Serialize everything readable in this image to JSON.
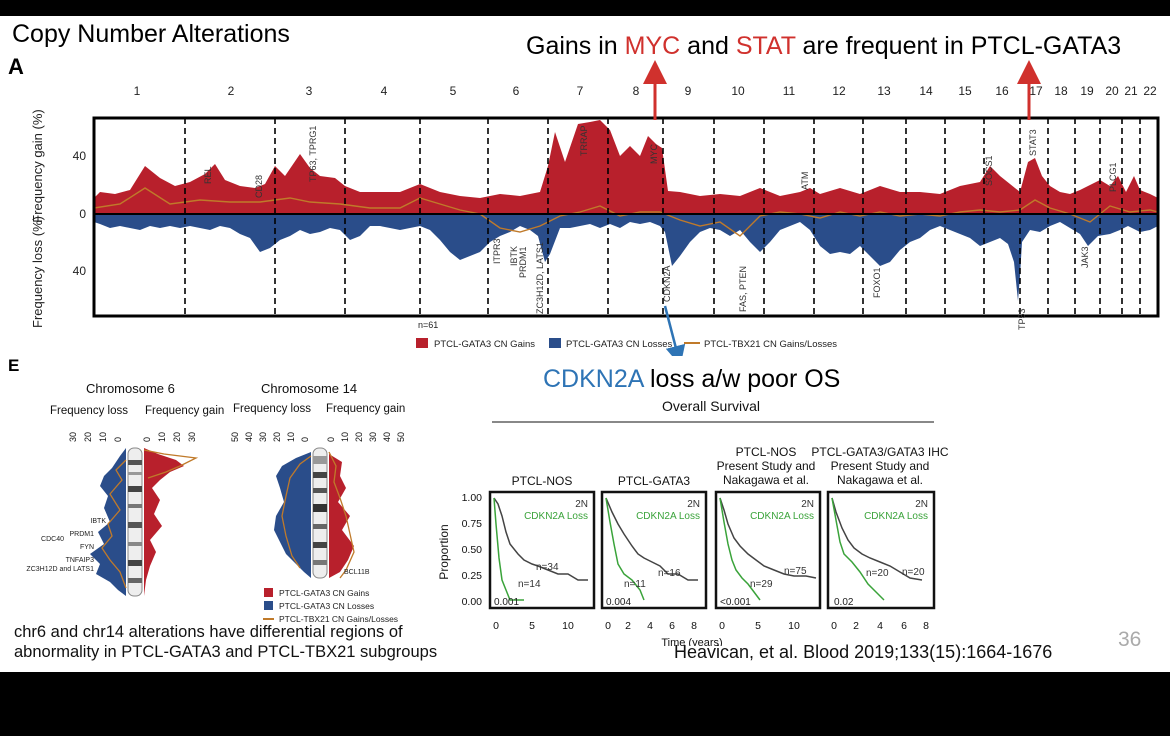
{
  "slide": {
    "title": "Copy Number Alterations",
    "panel_a_label": "A",
    "panel_e_label": "E",
    "headline_parts": [
      "Gains in ",
      "MYC",
      " and ",
      "STAT",
      " are frequent in PTCL-GATA3"
    ],
    "cdkn_callout_parts": [
      "CDKN2A",
      " loss a/w poor OS"
    ],
    "caption": "chr6 and chr14 alterations have differential regions of abnormality in PTCL-GATA3 and PTCL-TBX21 subgroups",
    "citation": "Heavican, et al. Blood 2019;133(15):1664-1676",
    "slide_number": "36",
    "colors": {
      "gain": "#b8202c",
      "loss": "#2a4d8a",
      "tbx21": "#c07a2a",
      "accent_red": "#d0312d",
      "accent_blue": "#2e74b5"
    }
  },
  "panel_a": {
    "chromosomes": [
      "1",
      "2",
      "3",
      "4",
      "5",
      "6",
      "7",
      "8",
      "9",
      "10",
      "11",
      "12",
      "13",
      "14",
      "15",
      "16",
      "17",
      "18",
      "19",
      "20",
      "21",
      "22"
    ],
    "y_gain_label": "Frequency gain (%)",
    "y_loss_label": "Frequency loss (%)",
    "ticks": [
      "40",
      "0",
      "40"
    ],
    "gene_labels": [
      "REL",
      "CD28",
      "TP63, TPRG1",
      "TRRAP",
      "MYC",
      "ATM",
      "SOCS1",
      "STAT3",
      "PLCG1",
      "ITPR3",
      "IBTK",
      "PRDM1",
      "ZC3H12D, LATS1",
      "CDKN2A",
      "FAS, PTEN",
      "FOXO1",
      "TP53",
      "JAK3"
    ],
    "n_label": "n=61",
    "legend": [
      "PTCL-GATA3 CN Gains",
      "PTCL-GATA3 CN Losses",
      "PTCL-TBX21 CN Gains/Losses"
    ]
  },
  "panel_e": {
    "chr6_title": "Chromosome 6",
    "chr14_title": "Chromosome 14",
    "freq_loss": "Frequency loss",
    "freq_gain": "Frequency gain",
    "chr6_loss_ticks": [
      "30",
      "20",
      "10",
      "0"
    ],
    "chr6_gain_ticks": [
      "0",
      "10",
      "20",
      "30"
    ],
    "chr14_loss_ticks": [
      "50",
      "40",
      "30",
      "20",
      "10",
      "0"
    ],
    "chr14_gain_ticks": [
      "0",
      "10",
      "20",
      "30",
      "40",
      "50"
    ],
    "chr6_genes": [
      "IBTK",
      "PRDM1",
      "CDC40",
      "FYN",
      "TNFAIP3",
      "ZC3H12D and LATS1"
    ],
    "chr14_genes": [
      "BCL11B"
    ],
    "legend": [
      "PTCL-GATA3 CN Gains",
      "PTCL-GATA3 CN Losses",
      "PTCL-TBX21 CN Gains/Losses"
    ]
  },
  "survival": {
    "title": "Overall Survival",
    "y_label": "Proportion",
    "x_label": "Time (years)",
    "y_ticks": [
      "1.00",
      "0.75",
      "0.50",
      "0.25",
      "0.00"
    ],
    "legend_2n": "2N",
    "legend_loss": "CDKN2A Loss",
    "panels": [
      {
        "title": [
          "PTCL-NOS"
        ],
        "n_2n": "n=34",
        "n_loss": "n=14",
        "p": "0.001",
        "x_ticks": [
          "0",
          "5",
          "10"
        ]
      },
      {
        "title": [
          "PTCL-GATA3"
        ],
        "n_2n": "n=16",
        "n_loss": "n=11",
        "p": "0.004",
        "x_ticks": [
          "0",
          "2",
          "4",
          "6",
          "8"
        ]
      },
      {
        "title": [
          "PTCL-NOS",
          "Present Study and",
          "Nakagawa et al."
        ],
        "n_2n": "n=75",
        "n_loss": "n=29",
        "p": "<0.001",
        "x_ticks": [
          "0",
          "5",
          "10"
        ]
      },
      {
        "title": [
          "PTCL-GATA3/GATA3 IHC",
          "Present Study and",
          "Nakagawa et al."
        ],
        "n_2n": "n=20",
        "n_loss": "n=20",
        "p": "0.02",
        "x_ticks": [
          "0",
          "2",
          "4",
          "6",
          "8"
        ]
      }
    ]
  }
}
